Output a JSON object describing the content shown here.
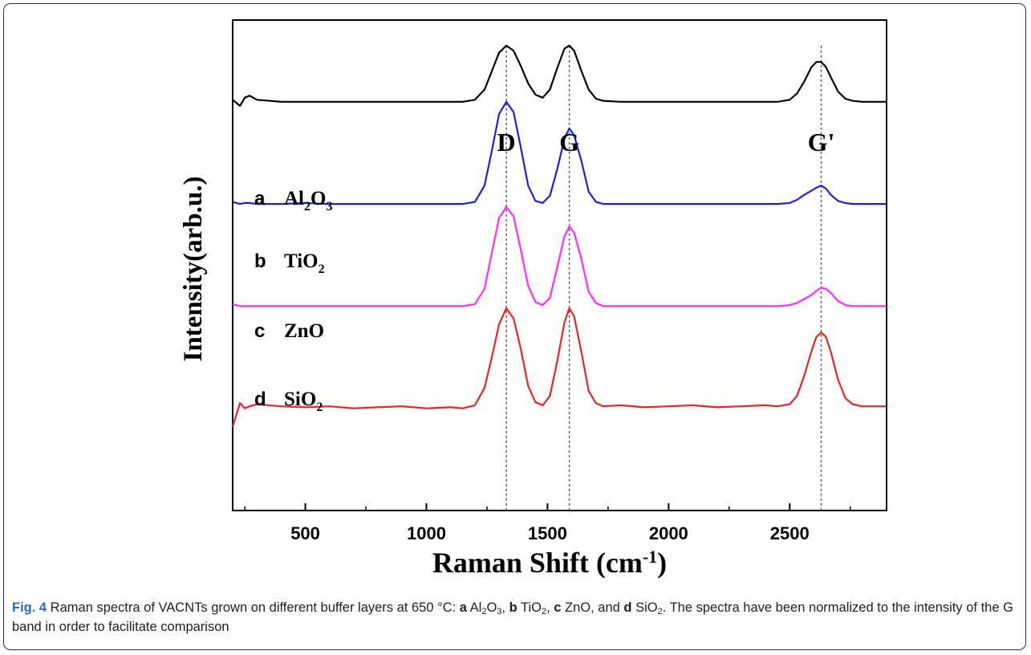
{
  "chart_data": {
    "type": "line",
    "title": "",
    "xlabel": "Raman Shift (cm",
    "xlabel_sup": "-1",
    "xlabel_close": ")",
    "ylabel": "Intensity(arb.u.)",
    "xlim": [
      200,
      2900
    ],
    "ylim": [
      0,
      4.8
    ],
    "grid": false,
    "legend": "none",
    "x_ticks": [
      500,
      1000,
      1500,
      2000,
      2500
    ],
    "x_tick_labels": [
      "500",
      "1000",
      "1500",
      "2000",
      "2500"
    ],
    "peak_labels": [
      {
        "text": "D",
        "x": 1330
      },
      {
        "text": "G",
        "x": 1590
      },
      {
        "text": "G'",
        "x": 2630
      }
    ],
    "x": [
      200,
      230,
      250,
      270,
      300,
      400,
      500,
      600,
      700,
      800,
      900,
      1000,
      1100,
      1150,
      1200,
      1240,
      1270,
      1300,
      1330,
      1360,
      1390,
      1420,
      1450,
      1480,
      1510,
      1540,
      1570,
      1590,
      1610,
      1640,
      1670,
      1700,
      1730,
      1800,
      1900,
      2000,
      2100,
      2200,
      2300,
      2400,
      2450,
      2500,
      2530,
      2560,
      2590,
      2610,
      2630,
      2650,
      2670,
      2700,
      2730,
      2760,
      2800,
      2900
    ],
    "series": [
      {
        "letter": "a",
        "material": "Al",
        "sub1": "2",
        "mat2": "O",
        "sub2": "3",
        "color": "#000000",
        "values": [
          4.02,
          3.96,
          4.04,
          4.06,
          4.02,
          4.0,
          4.0,
          4.0,
          4.0,
          4.0,
          4.0,
          4.0,
          4.0,
          4.0,
          4.02,
          4.12,
          4.3,
          4.48,
          4.55,
          4.5,
          4.35,
          4.18,
          4.07,
          4.04,
          4.12,
          4.33,
          4.52,
          4.55,
          4.5,
          4.3,
          4.12,
          4.03,
          4.01,
          4.0,
          4.0,
          4.0,
          4.0,
          4.0,
          4.0,
          4.0,
          4.0,
          4.02,
          4.08,
          4.2,
          4.34,
          4.39,
          4.39,
          4.34,
          4.24,
          4.1,
          4.03,
          4.01,
          4.0,
          4.0
        ]
      },
      {
        "letter": "b",
        "material": "Ti",
        "sub1": "",
        "mat2": "O",
        "sub2": "2",
        "color": "#1f1fe0",
        "values": [
          3.02,
          3.0,
          3.01,
          3.01,
          3.0,
          3.0,
          3.01,
          3.0,
          3.0,
          3.0,
          3.0,
          3.0,
          3.0,
          3.0,
          3.02,
          3.18,
          3.52,
          3.88,
          4.0,
          3.9,
          3.55,
          3.18,
          3.03,
          3.01,
          3.08,
          3.34,
          3.64,
          3.74,
          3.67,
          3.42,
          3.12,
          3.02,
          3.0,
          3.0,
          3.0,
          3.0,
          3.0,
          3.0,
          3.0,
          3.0,
          3.0,
          3.01,
          3.04,
          3.09,
          3.13,
          3.16,
          3.18,
          3.15,
          3.09,
          3.03,
          3.01,
          3.0,
          3.0,
          3.0
        ]
      },
      {
        "letter": "c",
        "material": "ZnO",
        "sub1": "",
        "mat2": "",
        "sub2": "",
        "color": "#ff2bff",
        "values": [
          2.02,
          2.0,
          2.0,
          2.0,
          2.0,
          2.0,
          2.0,
          2.0,
          2.0,
          2.0,
          2.0,
          2.0,
          2.0,
          2.0,
          2.02,
          2.17,
          2.52,
          2.86,
          2.97,
          2.88,
          2.55,
          2.2,
          2.04,
          2.01,
          2.08,
          2.38,
          2.68,
          2.78,
          2.72,
          2.46,
          2.14,
          2.03,
          2.0,
          2.0,
          2.0,
          2.0,
          2.0,
          2.0,
          2.0,
          2.0,
          2.0,
          2.01,
          2.03,
          2.07,
          2.11,
          2.15,
          2.18,
          2.17,
          2.13,
          2.05,
          2.01,
          2.0,
          2.0,
          2.0
        ]
      },
      {
        "letter": "d",
        "material": "Si",
        "sub1": "",
        "mat2": "O",
        "sub2": "2",
        "color": "#ee2222",
        "values": [
          0.82,
          1.05,
          1.0,
          1.02,
          1.04,
          1.02,
          1.01,
          1.02,
          1.0,
          1.01,
          1.02,
          1.0,
          1.01,
          1.0,
          1.03,
          1.2,
          1.5,
          1.82,
          1.98,
          1.88,
          1.58,
          1.22,
          1.06,
          1.03,
          1.12,
          1.46,
          1.84,
          1.98,
          1.9,
          1.55,
          1.17,
          1.05,
          1.02,
          1.03,
          1.01,
          1.02,
          1.03,
          1.01,
          1.02,
          1.03,
          1.02,
          1.04,
          1.12,
          1.32,
          1.56,
          1.7,
          1.74,
          1.7,
          1.55,
          1.28,
          1.1,
          1.04,
          1.02,
          1.02
        ]
      }
    ]
  },
  "caption": {
    "fig_label": "Fig. 4",
    "t0": " Raman spectra of VACNTs grown on different buffer layers at 650 °C: ",
    "a": "a",
    "t1": " Al",
    "s1": "2",
    "t2": "O",
    "s2": "3",
    "t3": ", ",
    "b": "b",
    "t4": " TiO",
    "s3": "2",
    "t5": ", ",
    "c": "c",
    "t6": " ZnO, and ",
    "d": "d",
    "t7": " SiO",
    "s4": "2",
    "t8": ". The spectra have been normalized to the intensity of the G band in order to facilitate comparison"
  }
}
